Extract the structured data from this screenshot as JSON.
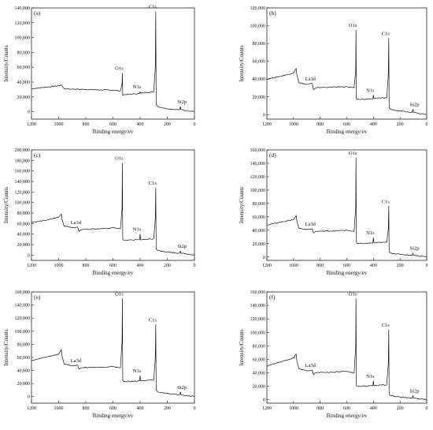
{
  "chart_data": [
    {
      "type": "line",
      "title": "",
      "panel_label": "(a)",
      "xlabel": "Binding energy/ev",
      "ylabel": "Intensity/Counts",
      "xlim": [
        1200,
        0
      ],
      "ylim": [
        -10000,
        140000
      ],
      "x_ticks": [
        1200,
        1000,
        800,
        600,
        400,
        200,
        0
      ],
      "y_ticks": [
        0,
        20000,
        40000,
        60000,
        80000,
        100000,
        120000,
        140000
      ],
      "y_tick_labels": [
        "0",
        "20,000",
        "40,000",
        "60,000",
        "80,000",
        "100,000",
        "120,000",
        "140,000"
      ],
      "grid": false,
      "series": [
        {
          "x": [
            1200,
            1100,
            1000,
            980,
            960,
            900,
            800,
            700,
            600,
            545,
            533,
            531,
            528,
            520,
            450,
            404,
            400,
            396,
            380,
            300,
            288,
            285,
            282,
            270,
            200,
            110,
            103,
            100,
            60,
            0
          ],
          "y": [
            31000,
            33000,
            35000,
            36000,
            31000,
            30500,
            30000,
            29500,
            29000,
            28000,
            38000,
            52000,
            22000,
            23000,
            24000,
            24500,
            27000,
            25000,
            25500,
            27000,
            60000,
            135000,
            10000,
            7000,
            4000,
            2500,
            7000,
            3000,
            1500,
            500
          ]
        }
      ],
      "annotations": [
        {
          "text": "O1s",
          "x": 531,
          "y": 52000
        },
        {
          "text": "N1s",
          "x": 400,
          "y": 27000
        },
        {
          "text": "C1s",
          "x": 285,
          "y": 135000
        },
        {
          "text": "Si2p",
          "x": 103,
          "y": 7000
        }
      ]
    },
    {
      "type": "line",
      "title": "",
      "panel_label": "(b)",
      "xlabel": "Binding energy/ev",
      "ylabel": "Intensity/Counts",
      "xlim": [
        1200,
        0
      ],
      "ylim": [
        -5000,
        120000
      ],
      "x_ticks": [
        1200,
        1000,
        800,
        600,
        400,
        200,
        0
      ],
      "y_ticks": [
        0,
        20000,
        40000,
        60000,
        80000,
        100000,
        120000
      ],
      "y_tick_labels": [
        "0",
        "20,000",
        "40,000",
        "60,000",
        "80,000",
        "100,000",
        "120,000"
      ],
      "grid": false,
      "series": [
        {
          "x": [
            1200,
            1100,
            1000,
            980,
            975,
            960,
            900,
            860,
            850,
            835,
            820,
            700,
            600,
            545,
            533,
            531,
            528,
            520,
            450,
            404,
            400,
            396,
            380,
            300,
            288,
            285,
            282,
            270,
            200,
            110,
            103,
            100,
            60,
            0
          ],
          "y": [
            40000,
            43000,
            47000,
            52000,
            45000,
            36000,
            34000,
            35000,
            28000,
            30000,
            30500,
            31000,
            31500,
            30000,
            50000,
            95000,
            18000,
            17000,
            17500,
            18000,
            22000,
            18000,
            18500,
            19000,
            45000,
            86000,
            8000,
            6000,
            4000,
            2500,
            6000,
            3000,
            1500,
            500
          ]
        }
      ],
      "annotations": [
        {
          "text": "La3d",
          "x": 850,
          "y": 35000
        },
        {
          "text": "O1s",
          "x": 531,
          "y": 95000
        },
        {
          "text": "N1s",
          "x": 400,
          "y": 22000
        },
        {
          "text": "C1s",
          "x": 285,
          "y": 86000
        },
        {
          "text": "Si2p",
          "x": 103,
          "y": 6000
        }
      ]
    },
    {
      "type": "line",
      "title": "",
      "panel_label": "(c)",
      "xlabel": "Binding energy/ev",
      "ylabel": "Intensity/Counts",
      "xlim": [
        1200,
        0
      ],
      "ylim": [
        -10000,
        200000
      ],
      "x_ticks": [
        1200,
        1000,
        800,
        600,
        400,
        200,
        0
      ],
      "y_ticks": [
        0,
        20000,
        40000,
        60000,
        80000,
        100000,
        120000,
        140000,
        160000,
        180000,
        200000
      ],
      "y_tick_labels": [
        "0",
        "20,000",
        "40,000",
        "60,000",
        "80,000",
        "100,000",
        "120,000",
        "140,000",
        "160,000",
        "180,000",
        "200,000"
      ],
      "grid": false,
      "series": [
        {
          "x": [
            1200,
            1100,
            1000,
            980,
            975,
            960,
            900,
            860,
            850,
            835,
            820,
            700,
            600,
            545,
            533,
            531,
            528,
            520,
            450,
            404,
            400,
            396,
            380,
            300,
            288,
            285,
            282,
            270,
            200,
            110,
            103,
            100,
            60,
            0
          ],
          "y": [
            62000,
            66000,
            72000,
            78000,
            68000,
            55000,
            52000,
            53000,
            45000,
            48000,
            49000,
            50000,
            52000,
            50000,
            90000,
            175000,
            30000,
            28000,
            28500,
            30000,
            40000,
            29000,
            29500,
            31000,
            70000,
            128000,
            12000,
            9000,
            6000,
            3500,
            8000,
            4000,
            2000,
            500
          ]
        }
      ],
      "annotations": [
        {
          "text": "La3d",
          "x": 850,
          "y": 53000
        },
        {
          "text": "O1s",
          "x": 531,
          "y": 175000
        },
        {
          "text": "N1s",
          "x": 400,
          "y": 40000
        },
        {
          "text": "C1s",
          "x": 285,
          "y": 128000
        },
        {
          "text": "Si2p",
          "x": 103,
          "y": 8000
        }
      ]
    },
    {
      "type": "line",
      "title": "",
      "panel_label": "(d)",
      "xlabel": "Binding energy/ev",
      "ylabel": "Intensity/Counts",
      "xlim": [
        1200,
        0
      ],
      "ylim": [
        -5000,
        160000
      ],
      "x_ticks": [
        1200,
        1000,
        800,
        600,
        400,
        200,
        0
      ],
      "y_ticks": [
        0,
        20000,
        40000,
        60000,
        80000,
        100000,
        120000,
        140000,
        160000
      ],
      "y_tick_labels": [
        "0",
        "20,000",
        "40,000",
        "60,000",
        "80,000",
        "100,000",
        "120,000",
        "140,000",
        "160,000"
      ],
      "grid": false,
      "series": [
        {
          "x": [
            1200,
            1100,
            1000,
            980,
            975,
            960,
            900,
            860,
            850,
            835,
            820,
            700,
            600,
            545,
            533,
            531,
            528,
            520,
            450,
            404,
            400,
            396,
            380,
            300,
            288,
            285,
            282,
            270,
            200,
            110,
            103,
            100,
            60,
            0
          ],
          "y": [
            48000,
            52000,
            56000,
            62000,
            54000,
            43000,
            41000,
            42000,
            36000,
            38000,
            38500,
            39000,
            40000,
            38000,
            75000,
            148000,
            22000,
            20000,
            20500,
            21000,
            29000,
            21000,
            21500,
            22000,
            42000,
            76000,
            8000,
            6000,
            4000,
            2500,
            6000,
            3000,
            1500,
            500
          ]
        }
      ],
      "annotations": [
        {
          "text": "La3d",
          "x": 850,
          "y": 42000
        },
        {
          "text": "O1s",
          "x": 531,
          "y": 148000
        },
        {
          "text": "N1s",
          "x": 400,
          "y": 29000
        },
        {
          "text": "C1s",
          "x": 285,
          "y": 76000
        },
        {
          "text": "Si2p",
          "x": 103,
          "y": 6000
        }
      ]
    },
    {
      "type": "line",
      "title": "",
      "panel_label": "(e)",
      "xlabel": "Binding energy/ev",
      "ylabel": "Intensity/Counts",
      "xlim": [
        1200,
        0
      ],
      "ylim": [
        -10000,
        160000
      ],
      "x_ticks": [
        1200,
        1000,
        800,
        600,
        400,
        200,
        0
      ],
      "y_ticks": [
        0,
        20000,
        40000,
        60000,
        80000,
        100000,
        120000,
        140000,
        160000
      ],
      "y_tick_labels": [
        "0",
        "20,000",
        "40,000",
        "60,000",
        "80,000",
        "100,000",
        "120,000",
        "140,000",
        "160,000"
      ],
      "grid": false,
      "series": [
        {
          "x": [
            1200,
            1100,
            1000,
            980,
            975,
            960,
            900,
            860,
            850,
            835,
            820,
            700,
            600,
            545,
            533,
            531,
            528,
            520,
            450,
            404,
            400,
            396,
            380,
            300,
            288,
            285,
            282,
            270,
            200,
            110,
            103,
            100,
            60,
            0
          ],
          "y": [
            55000,
            60000,
            65000,
            72000,
            62000,
            50000,
            47000,
            48000,
            42000,
            44000,
            44500,
            45000,
            46000,
            44000,
            85000,
            150000,
            25000,
            23000,
            23500,
            24000,
            32000,
            24000,
            24500,
            25000,
            60000,
            110000,
            10000,
            7000,
            5000,
            3000,
            7000,
            3500,
            1500,
            500
          ]
        }
      ],
      "annotations": [
        {
          "text": "La3d",
          "x": 850,
          "y": 48000
        },
        {
          "text": "O1s",
          "x": 531,
          "y": 150000
        },
        {
          "text": "N1s",
          "x": 400,
          "y": 32000
        },
        {
          "text": "C1s",
          "x": 285,
          "y": 110000
        },
        {
          "text": "Si2p",
          "x": 103,
          "y": 7000
        }
      ]
    },
    {
      "type": "line",
      "title": "",
      "panel_label": "(f)",
      "xlabel": "Binding energy/ev",
      "ylabel": "Intensity/Counts",
      "xlim": [
        1200,
        0
      ],
      "ylim": [
        -5000,
        160000
      ],
      "x_ticks": [
        1200,
        1000,
        800,
        600,
        400,
        200,
        0
      ],
      "y_ticks": [
        0,
        20000,
        40000,
        60000,
        80000,
        100000,
        120000,
        140000,
        160000
      ],
      "y_tick_labels": [
        "0",
        "20,000",
        "40,000",
        "60,000",
        "80,000",
        "100,000",
        "120,000",
        "140,000",
        "160,000"
      ],
      "grid": false,
      "series": [
        {
          "x": [
            1200,
            1100,
            1000,
            980,
            975,
            960,
            900,
            860,
            850,
            835,
            820,
            700,
            600,
            545,
            533,
            531,
            528,
            520,
            450,
            404,
            400,
            396,
            380,
            300,
            288,
            285,
            282,
            270,
            200,
            110,
            103,
            100,
            60,
            0
          ],
          "y": [
            50000,
            56000,
            62000,
            68000,
            58000,
            46000,
            43000,
            44000,
            37000,
            40000,
            40500,
            41000,
            42000,
            40000,
            80000,
            150000,
            21000,
            20000,
            20500,
            21000,
            28000,
            21000,
            21500,
            22000,
            55000,
            104000,
            8000,
            6000,
            4000,
            2500,
            6000,
            3000,
            1500,
            500
          ]
        }
      ],
      "annotations": [
        {
          "text": "La3d",
          "x": 850,
          "y": 44000
        },
        {
          "text": "O1s",
          "x": 531,
          "y": 150000
        },
        {
          "text": "N1s",
          "x": 400,
          "y": 28000
        },
        {
          "text": "C1s",
          "x": 285,
          "y": 104000
        },
        {
          "text": "Si2p",
          "x": 103,
          "y": 6000
        }
      ]
    }
  ]
}
